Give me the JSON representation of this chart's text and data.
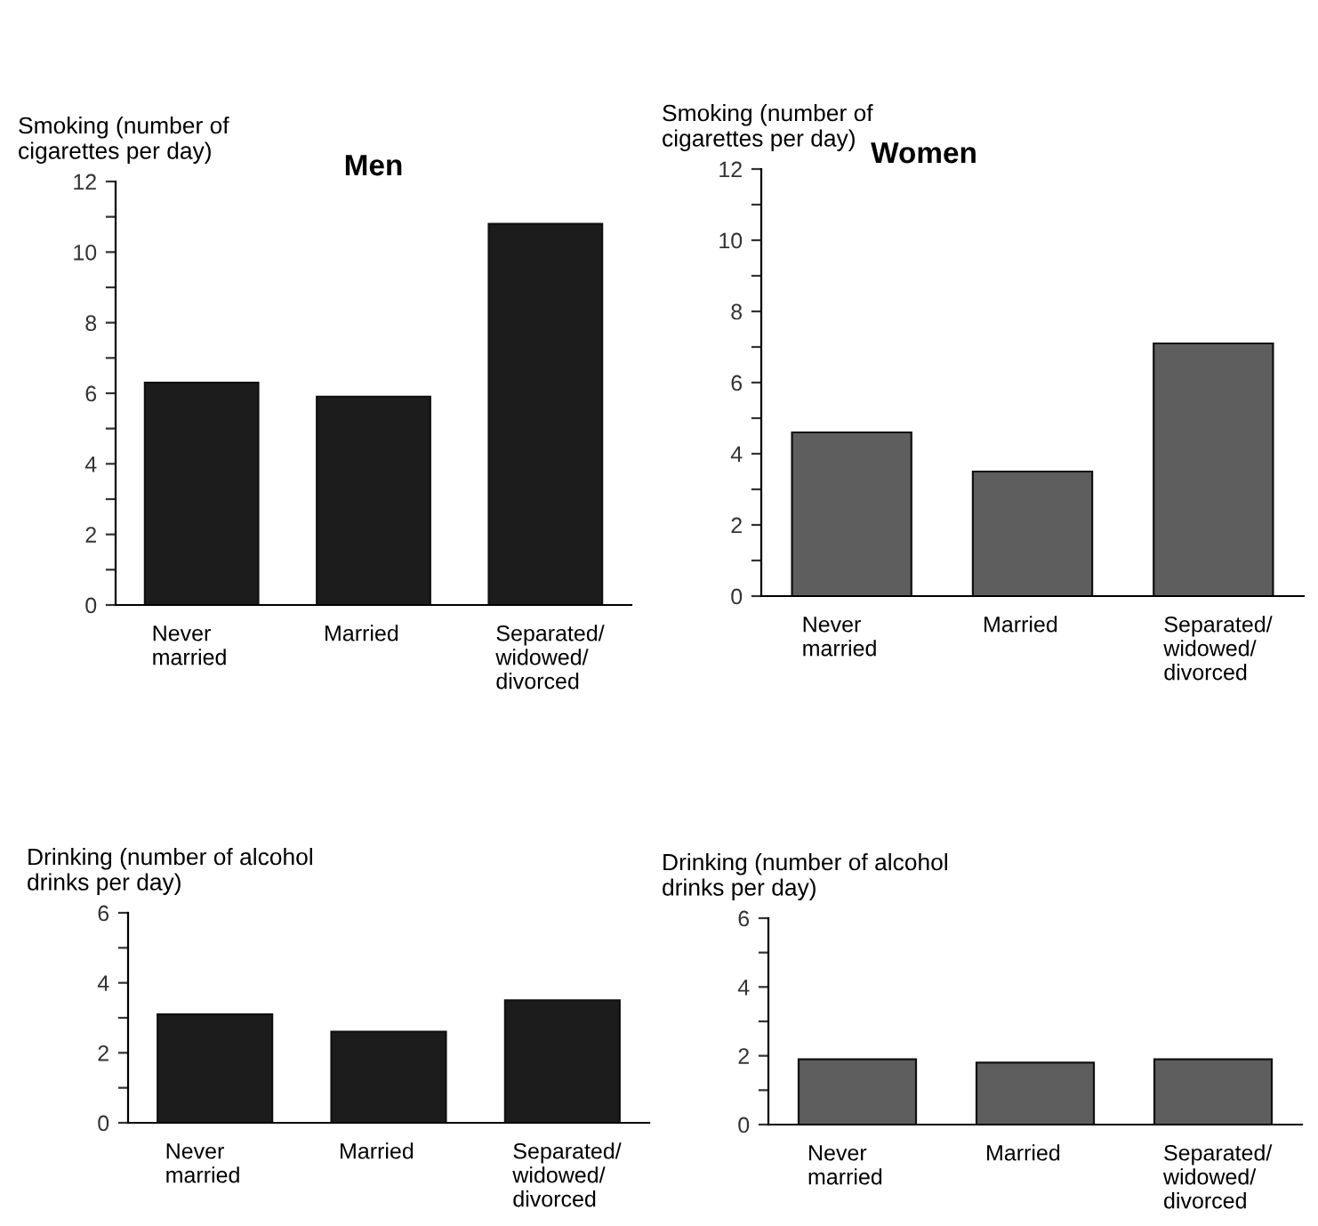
{
  "chart_data": [
    {
      "type": "bar",
      "title": "Men",
      "ylabel": "Smoking (number of\ncigarettes per day)",
      "categories": [
        "Never\nmarried",
        "Married",
        "Separated/\nwidowed/\ndivorced"
      ],
      "values": [
        6.3,
        5.9,
        10.8
      ],
      "color": "#1c1c1c",
      "ylim": [
        0,
        12
      ],
      "yticks": [
        0,
        {
          "value": 1,
          "label": null
        },
        2,
        {
          "value": 3,
          "label": null
        },
        4,
        {
          "value": 5,
          "label": null
        },
        6,
        {
          "value": 7,
          "label": null
        },
        8,
        {
          "value": 9,
          "label": null
        },
        10,
        {
          "value": 11,
          "label": null
        },
        12
      ],
      "grid": false
    },
    {
      "type": "bar",
      "title": "Women",
      "ylabel": "Smoking (number of\ncigarettes per day)",
      "categories": [
        "Never\nmarried",
        "Married",
        "Separated/\nwidowed/\ndivorced"
      ],
      "values": [
        4.6,
        3.5,
        7.1
      ],
      "color": "#5e5e5e",
      "ylim": [
        0,
        12
      ],
      "yticks": [
        0,
        {
          "value": 1,
          "label": null
        },
        2,
        {
          "value": 3,
          "label": null
        },
        4,
        {
          "value": 5,
          "label": null
        },
        6,
        {
          "value": 7,
          "label": null
        },
        8,
        {
          "value": 9,
          "label": null
        },
        10,
        {
          "value": 11,
          "label": null
        },
        12
      ],
      "grid": false
    },
    {
      "type": "bar",
      "ylabel": "Drinking (number of alcohol\ndrinks per day)",
      "categories": [
        "Never\nmarried",
        "Married",
        "Separated/\nwidowed/\ndivorced"
      ],
      "values": [
        3.1,
        2.6,
        3.5
      ],
      "color": "#1c1c1c",
      "ylim": [
        0,
        6
      ],
      "yticks": [
        0,
        {
          "value": 1,
          "label": null
        },
        2,
        {
          "value": 3,
          "label": null
        },
        4,
        {
          "value": 5,
          "label": null
        },
        6
      ],
      "grid": false
    },
    {
      "type": "bar",
      "ylabel": "Drinking (number of alcohol\ndrinks per day)",
      "categories": [
        "Never\nmarried",
        "Married",
        "Separated/\nwidowed/\ndivorced"
      ],
      "values": [
        1.9,
        1.8,
        1.9
      ],
      "color": "#5e5e5e",
      "ylim": [
        0,
        6
      ],
      "yticks": [
        0,
        {
          "value": 1,
          "label": null
        },
        2,
        {
          "value": 3,
          "label": null
        },
        4,
        {
          "value": 5,
          "label": null
        },
        6
      ],
      "grid": false
    }
  ]
}
